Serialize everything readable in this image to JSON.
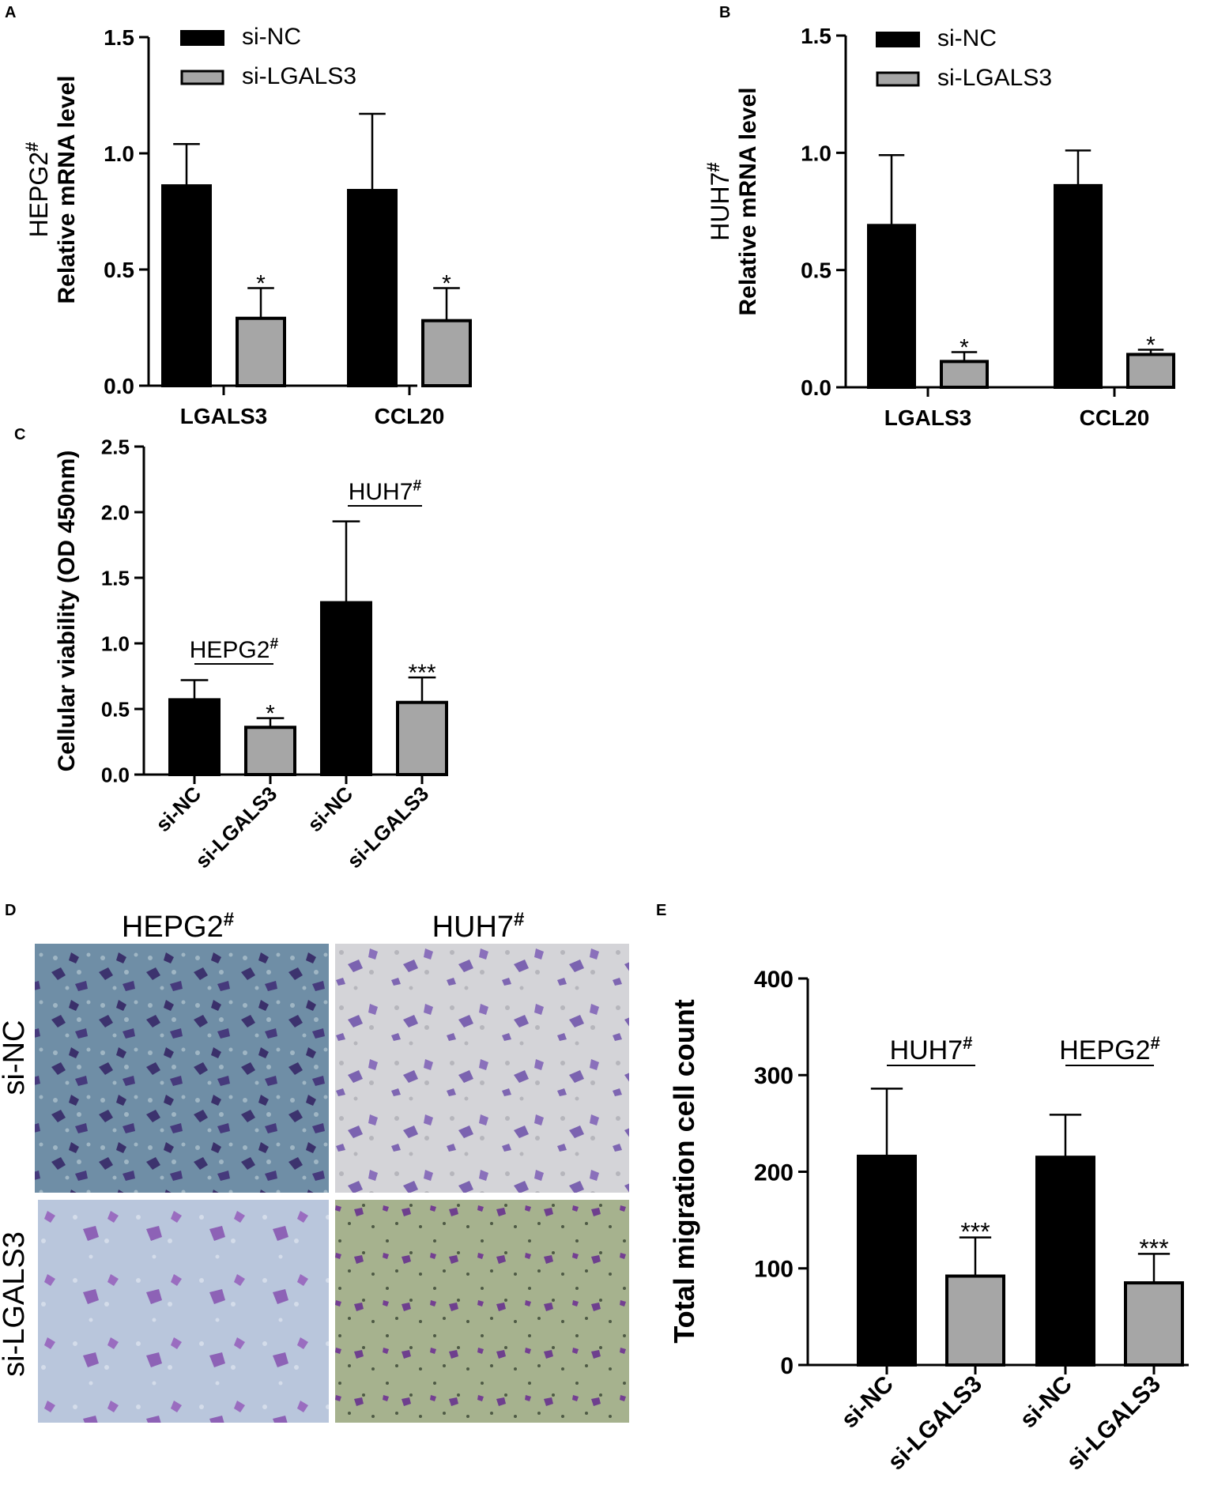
{
  "panels": {
    "A": "A",
    "B": "B",
    "C": "C",
    "D": "D",
    "E": "E"
  },
  "legend": {
    "series1": "si-NC",
    "series2": "si-LGALS3"
  },
  "colors": {
    "si_nc": "#000000",
    "si_lgals3": "#a6a6a6",
    "purple_cells": "#5b3d8f"
  },
  "chart_data": [
    {
      "panel": "A",
      "type": "bar",
      "ylabel_line1": "HEPG2#",
      "ylabel_line2": "Relative mRNA level",
      "categories": [
        "LGALS3",
        "CCL20"
      ],
      "series": [
        {
          "name": "si-NC",
          "values": [
            0.86,
            0.84
          ],
          "errors": [
            0.18,
            0.33
          ]
        },
        {
          "name": "si-LGALS3",
          "values": [
            0.29,
            0.28
          ],
          "errors": [
            0.13,
            0.14
          ]
        }
      ],
      "significance": [
        "*",
        "*"
      ],
      "ylim": [
        0,
        1.5
      ],
      "yticks": [
        "0.0",
        "0.5",
        "1.0",
        "1.5"
      ],
      "legend": "top-left"
    },
    {
      "panel": "B",
      "type": "bar",
      "ylabel_line1": "HUH7#",
      "ylabel_line2": "Relative mRNA level",
      "categories": [
        "LGALS3",
        "CCL20"
      ],
      "series": [
        {
          "name": "si-NC",
          "values": [
            0.69,
            0.86
          ],
          "errors": [
            0.3,
            0.15
          ]
        },
        {
          "name": "si-LGALS3",
          "values": [
            0.11,
            0.14
          ],
          "errors": [
            0.04,
            0.02
          ]
        }
      ],
      "significance": [
        "*",
        "*"
      ],
      "ylim": [
        0,
        1.5
      ],
      "yticks": [
        "0.0",
        "0.5",
        "1.0",
        "1.5"
      ],
      "legend": "top-left"
    },
    {
      "panel": "C",
      "type": "bar",
      "ylabel": "Cellular viability (OD 450nm)",
      "categories": [
        "si-NC",
        "si-LGALS3",
        "si-NC",
        "si-LGALS3"
      ],
      "values": [
        0.57,
        0.36,
        1.31,
        0.55
      ],
      "errors": [
        0.15,
        0.07,
        0.62,
        0.19
      ],
      "significance": [
        "",
        "*",
        "",
        "***"
      ],
      "groups": [
        "HEPG2#",
        "HUH7#"
      ],
      "ylim": [
        0,
        2.5
      ],
      "yticks": [
        "0.0",
        "0.5",
        "1.0",
        "1.5",
        "2.0",
        "2.5"
      ]
    },
    {
      "panel": "E",
      "type": "bar",
      "ylabel": "Total migration cell count",
      "categories": [
        "si-NC",
        "si-LGALS3",
        "si-NC",
        "si-LGALS3"
      ],
      "values": [
        216,
        92,
        215,
        85
      ],
      "errors": [
        70,
        40,
        44,
        30
      ],
      "significance": [
        "",
        "***",
        "",
        "***"
      ],
      "groups": [
        "HUH7#",
        "HEPG2#"
      ],
      "ylim": [
        0,
        400
      ],
      "yticks": [
        "0",
        "100",
        "200",
        "300",
        "400"
      ]
    }
  ],
  "micrographs": {
    "col_headers": [
      "HEPG2#",
      "HUH7#"
    ],
    "row_headers": [
      "si-NC",
      "si-LGALS3"
    ]
  }
}
